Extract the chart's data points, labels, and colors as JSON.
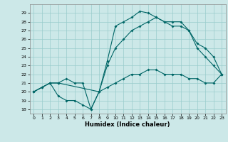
{
  "xlabel": "Humidex (Indice chaleur)",
  "bg_color": "#cce8e8",
  "grid_color": "#99cccc",
  "line_color": "#006666",
  "xlim": [
    -0.5,
    23.5
  ],
  "ylim": [
    17.5,
    30.0
  ],
  "xticks": [
    0,
    1,
    2,
    3,
    4,
    5,
    6,
    7,
    8,
    9,
    10,
    11,
    12,
    13,
    14,
    15,
    16,
    17,
    18,
    19,
    20,
    21,
    22,
    23
  ],
  "yticks": [
    18,
    19,
    20,
    21,
    22,
    23,
    24,
    25,
    26,
    27,
    28,
    29
  ],
  "line1_x": [
    0,
    1,
    2,
    3,
    4,
    5,
    6,
    7,
    8,
    9,
    10,
    11,
    12,
    13,
    14,
    15,
    16,
    17,
    18,
    19,
    20,
    21,
    22,
    23
  ],
  "line1_y": [
    20,
    20.5,
    21,
    21,
    21.5,
    21,
    21,
    18,
    20,
    23.5,
    27.5,
    28,
    28.5,
    29.2,
    29,
    28.5,
    28,
    28,
    28,
    27,
    25,
    24,
    23,
    22
  ],
  "line2_x": [
    0,
    2,
    3,
    8,
    9,
    10,
    11,
    12,
    13,
    14,
    15,
    16,
    17,
    18,
    19,
    20,
    21,
    22,
    23
  ],
  "line2_y": [
    20,
    21,
    21,
    20,
    23,
    25,
    26,
    27,
    27.5,
    28,
    28.5,
    28,
    27.5,
    27.5,
    27,
    25.5,
    25,
    24,
    22
  ],
  "line3_x": [
    0,
    1,
    2,
    3,
    4,
    5,
    6,
    7,
    8,
    9,
    10,
    11,
    12,
    13,
    14,
    15,
    16,
    17,
    18,
    19,
    20,
    21,
    22,
    23
  ],
  "line3_y": [
    20,
    20.5,
    21,
    19.5,
    19,
    19,
    18.5,
    18,
    20,
    20.5,
    21,
    21.5,
    22,
    22,
    22.5,
    22.5,
    22,
    22,
    22,
    21.5,
    21.5,
    21,
    21,
    22
  ]
}
